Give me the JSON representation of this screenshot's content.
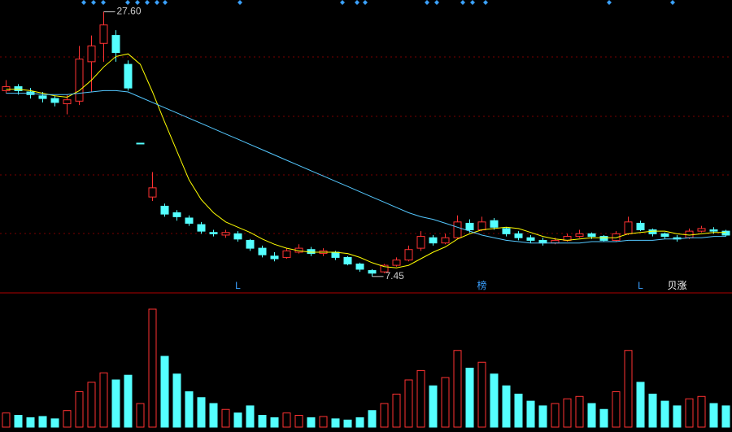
{
  "chart_data": {
    "type": "candlestick",
    "ylim": [
      6.2,
      28.5
    ],
    "open": [
      21.6,
      21.9,
      21.5,
      21.2,
      21.0,
      20.6,
      20.8,
      23.8,
      25.2,
      25.8,
      23.6,
      17.6,
      13.5,
      12.8,
      12.3,
      11.9,
      11.4,
      10.8,
      10.6,
      10.7,
      10.2,
      9.6,
      9.0,
      8.9,
      9.3,
      9.5,
      9.2,
      9.3,
      8.9,
      8.4,
      7.9,
      7.8,
      8.3,
      8.7,
      9.6,
      10.4,
      10.0,
      10.4,
      11.5,
      11.0,
      11.7,
      11.1,
      10.7,
      10.4,
      10.2,
      10.0,
      10.2,
      10.5,
      10.7,
      10.5,
      10.2,
      10.7,
      11.5,
      11.0,
      10.7,
      10.4,
      10.4,
      10.9,
      11.0,
      10.9
    ],
    "high": [
      22.4,
      22.1,
      21.8,
      21.5,
      21.2,
      21.3,
      25.0,
      25.8,
      27.6,
      26.2,
      23.9,
      17.6,
      15.4,
      13.0,
      12.5,
      12.1,
      11.6,
      11.0,
      11.0,
      10.9,
      10.3,
      9.8,
      9.3,
      9.6,
      9.9,
      9.7,
      9.6,
      9.4,
      9.0,
      8.5,
      8.0,
      8.4,
      8.9,
      9.8,
      10.9,
      10.6,
      10.7,
      12.1,
      11.8,
      12.0,
      11.9,
      11.2,
      10.9,
      10.6,
      10.4,
      10.4,
      10.7,
      11.0,
      10.8,
      10.6,
      10.9,
      12.0,
      11.7,
      11.1,
      10.8,
      10.6,
      11.1,
      11.3,
      11.2,
      11.0
    ],
    "low": [
      21.4,
      21.3,
      21.0,
      20.7,
      20.4,
      19.8,
      20.5,
      21.5,
      23.8,
      23.8,
      21.6,
      17.6,
      13.2,
      12.0,
      11.7,
      11.3,
      10.7,
      10.5,
      10.4,
      10.1,
      9.4,
      8.9,
      8.6,
      8.8,
      9.2,
      9.0,
      9.0,
      8.7,
      8.3,
      7.8,
      7.45,
      7.7,
      8.2,
      8.6,
      9.4,
      9.8,
      9.9,
      10.3,
      10.8,
      10.9,
      11.0,
      10.5,
      10.2,
      10.0,
      9.8,
      9.9,
      10.1,
      10.4,
      10.3,
      10.1,
      10.1,
      10.6,
      10.9,
      10.5,
      10.3,
      10.1,
      10.3,
      10.8,
      10.7,
      10.5
    ],
    "close": [
      21.9,
      21.6,
      21.3,
      21.0,
      20.7,
      20.9,
      24.0,
      25.0,
      26.6,
      24.5,
      21.8,
      17.6,
      14.2,
      12.2,
      12.0,
      11.5,
      10.9,
      10.7,
      10.8,
      10.3,
      9.6,
      9.1,
      8.8,
      9.4,
      9.6,
      9.2,
      9.4,
      8.9,
      8.4,
      8.0,
      7.7,
      8.3,
      8.7,
      9.5,
      10.5,
      10.0,
      10.4,
      11.6,
      11.0,
      11.6,
      11.2,
      10.7,
      10.4,
      10.2,
      10.0,
      10.2,
      10.5,
      10.7,
      10.5,
      10.2,
      10.7,
      11.6,
      11.0,
      10.7,
      10.5,
      10.3,
      10.9,
      11.1,
      10.9,
      10.6
    ],
    "ma": [
      {
        "color": "#ffff00",
        "values": [
          21.7,
          21.7,
          21.6,
          21.4,
          21.2,
          21.1,
          21.6,
          22.4,
          23.4,
          24.2,
          24.4,
          23.6,
          21.5,
          19.2,
          17.0,
          14.8,
          13.3,
          12.3,
          11.6,
          11.2,
          10.8,
          10.3,
          9.9,
          9.6,
          9.4,
          9.3,
          9.3,
          9.3,
          9.2,
          8.9,
          8.5,
          8.2,
          8.1,
          8.3,
          8.8,
          9.3,
          9.7,
          10.3,
          10.7,
          11.0,
          11.1,
          11.2,
          11.1,
          10.8,
          10.5,
          10.3,
          10.2,
          10.3,
          10.4,
          10.4,
          10.4,
          10.7,
          10.8,
          10.9,
          10.9,
          10.7,
          10.6,
          10.7,
          10.8,
          10.8
        ]
      },
      {
        "color": "#54c8ff",
        "values": [
          21.4,
          21.4,
          21.4,
          21.3,
          21.3,
          21.3,
          21.4,
          21.5,
          21.6,
          21.6,
          21.5,
          21.1,
          20.7,
          20.3,
          19.9,
          19.5,
          19.1,
          18.7,
          18.3,
          17.9,
          17.5,
          17.1,
          16.7,
          16.3,
          15.9,
          15.5,
          15.1,
          14.7,
          14.3,
          13.9,
          13.5,
          13.1,
          12.7,
          12.3,
          12.0,
          11.8,
          11.5,
          11.2,
          10.9,
          10.6,
          10.4,
          10.2,
          10.1,
          10.0,
          10.0,
          10.0,
          10.0,
          10.0,
          10.1,
          10.1,
          10.1,
          10.2,
          10.2,
          10.2,
          10.3,
          10.3,
          10.4,
          10.4,
          10.5,
          10.5
        ]
      }
    ],
    "annotations": [
      {
        "label": "27.60",
        "value": 27.6
      },
      {
        "label": "7.45",
        "value": 7.45
      }
    ],
    "signals": [
      null,
      null,
      null,
      null,
      null,
      null,
      null,
      null,
      null,
      null,
      null,
      null,
      null,
      null,
      null,
      null,
      null,
      null,
      null,
      "L",
      null,
      null,
      null,
      null,
      null,
      null,
      null,
      null,
      null,
      null,
      null,
      null,
      null,
      null,
      null,
      null,
      null,
      null,
      null,
      "榜",
      null,
      null,
      null,
      null,
      null,
      null,
      null,
      null,
      null,
      null,
      null,
      null,
      "L",
      null,
      null,
      "贝涨",
      null,
      null,
      null,
      null
    ],
    "volume": {
      "ylim": [
        0,
        100
      ],
      "values": [
        12,
        10,
        8,
        9,
        7,
        14,
        30,
        38,
        46,
        40,
        44,
        20,
        100,
        60,
        45,
        30,
        25,
        20,
        15,
        12,
        18,
        10,
        8,
        12,
        10,
        8,
        9,
        7,
        6,
        8,
        14,
        20,
        28,
        40,
        48,
        35,
        42,
        65,
        50,
        55,
        45,
        35,
        28,
        22,
        18,
        20,
        24,
        26,
        20,
        15,
        30,
        65,
        38,
        28,
        22,
        18,
        24,
        26,
        20,
        18
      ]
    },
    "up_color": "#ff3232",
    "down_color": "#54ffff"
  }
}
